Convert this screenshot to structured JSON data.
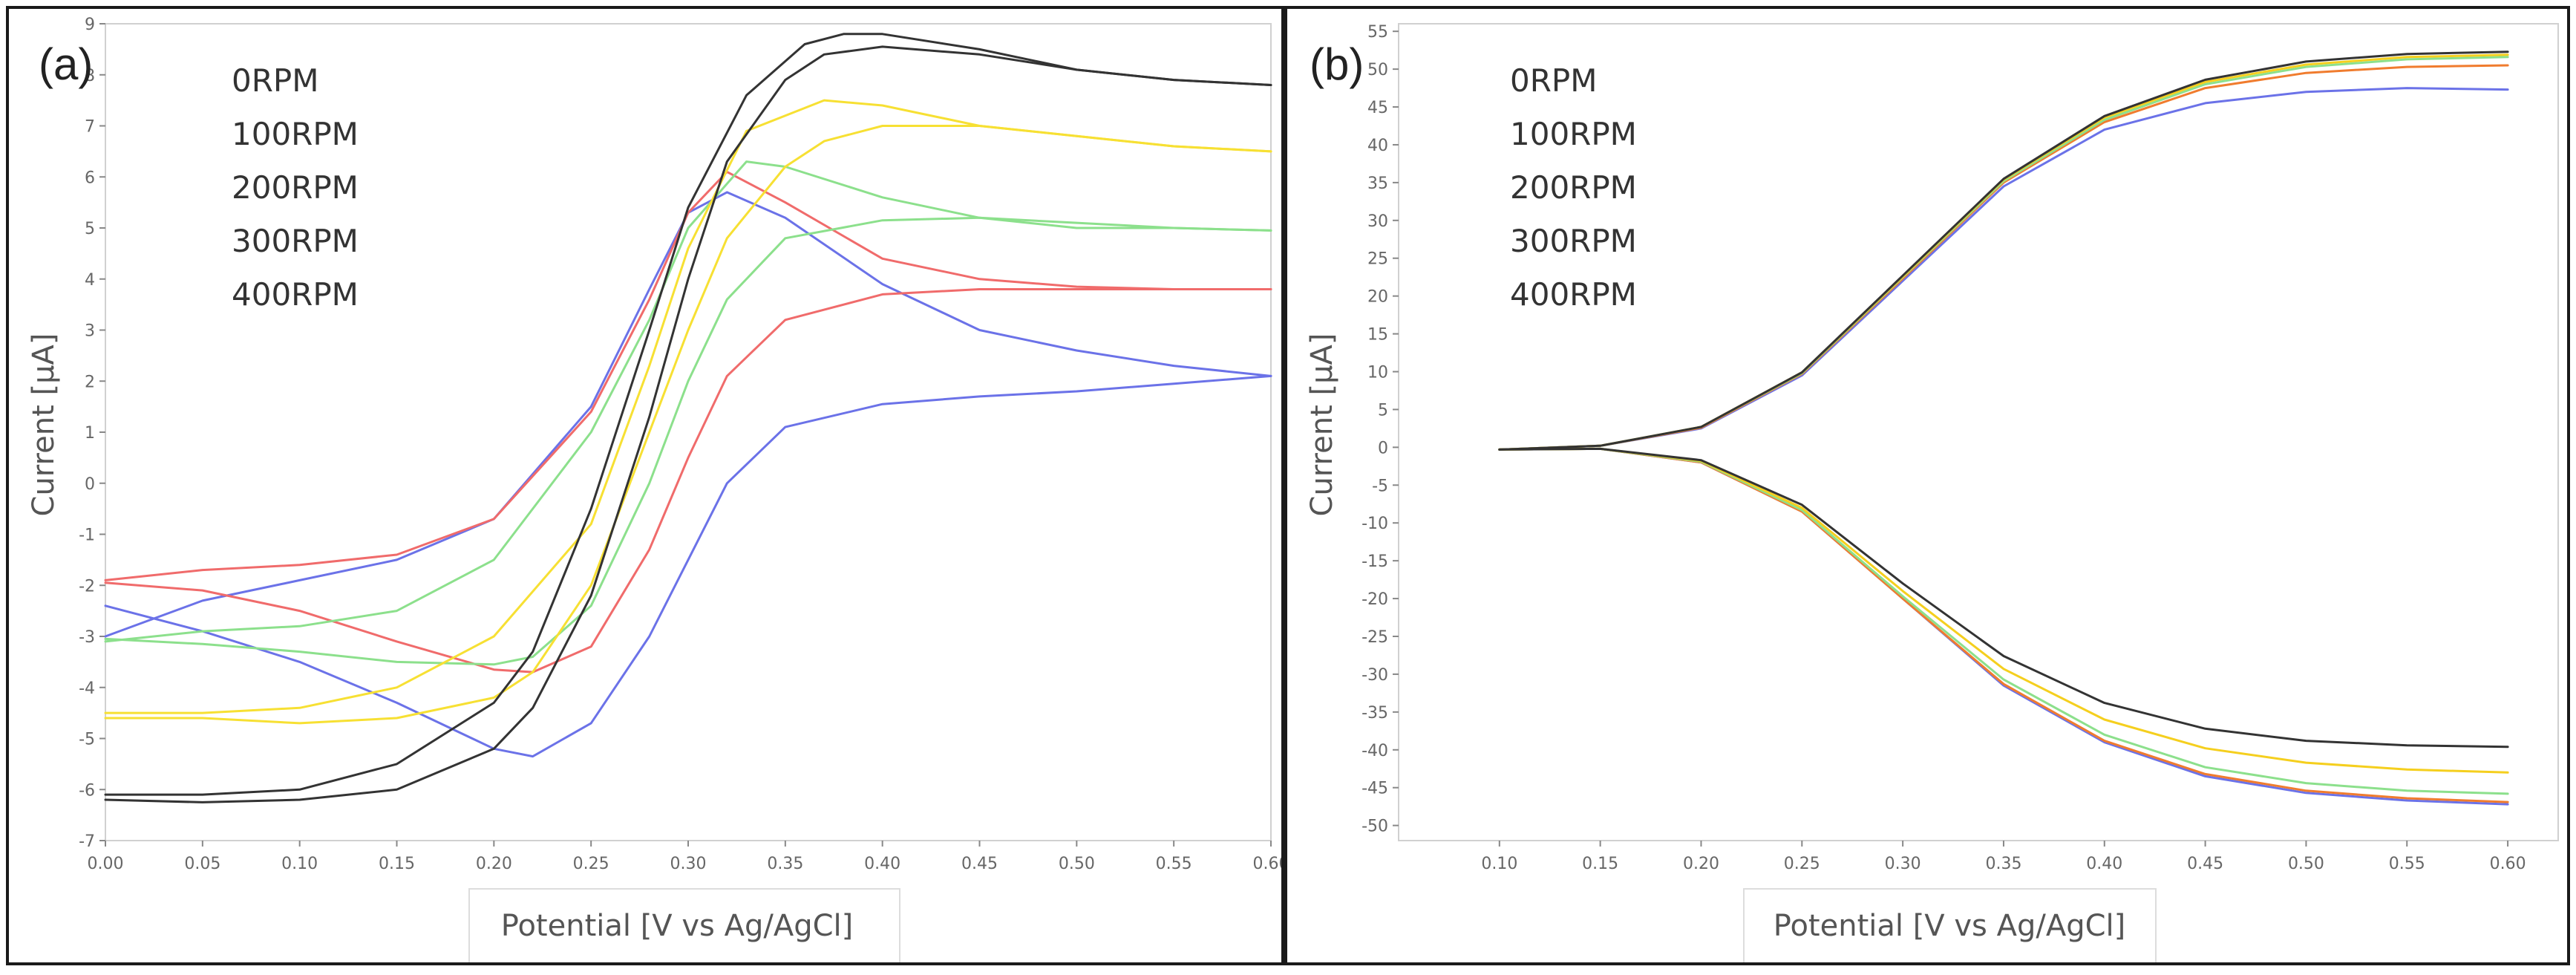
{
  "chart_data": [
    {
      "type": "line",
      "panel_label": "(a)",
      "xlabel": "Potential [V vs Ag/AgCl]",
      "ylabel": "Current [μA]",
      "xlim": [
        0.0,
        0.6
      ],
      "ylim": [
        -7,
        9
      ],
      "xticks": [
        "0.00",
        "0.05",
        "0.10",
        "0.15",
        "0.20",
        "0.25",
        "0.30",
        "0.35",
        "0.40",
        "0.45",
        "0.50",
        "0.55",
        "0.60"
      ],
      "yticks": [
        "-7",
        "-6",
        "-5",
        "-4",
        "-3",
        "-2",
        "-1",
        "0",
        "1",
        "2",
        "3",
        "4",
        "5",
        "6",
        "7",
        "8",
        "9"
      ],
      "grid": false,
      "legend_position": "top-left",
      "series": [
        {
          "name": "0RPM",
          "color": "#4a5fd6",
          "line_color": "#6b72e8",
          "forward": {
            "x": [
              0.0,
              0.05,
              0.1,
              0.15,
              0.2,
              0.25,
              0.28,
              0.3,
              0.32,
              0.35,
              0.4,
              0.45,
              0.5,
              0.55,
              0.6
            ],
            "y": [
              -3.0,
              -2.3,
              -1.9,
              -1.5,
              -0.7,
              1.5,
              3.8,
              5.3,
              5.7,
              5.2,
              3.9,
              3.0,
              2.6,
              2.3,
              2.1
            ]
          },
          "reverse": {
            "x": [
              0.6,
              0.55,
              0.5,
              0.45,
              0.4,
              0.35,
              0.32,
              0.3,
              0.28,
              0.25,
              0.22,
              0.2,
              0.15,
              0.1,
              0.05,
              0.0
            ],
            "y": [
              2.1,
              1.95,
              1.8,
              1.7,
              1.55,
              1.1,
              0.0,
              -1.5,
              -3.0,
              -4.7,
              -5.35,
              -5.2,
              -4.3,
              -3.5,
              -2.9,
              -2.4
            ]
          }
        },
        {
          "name": "100RPM",
          "color": "#f07c2e",
          "line_color": "#f06b6b",
          "forward": {
            "x": [
              0.0,
              0.05,
              0.1,
              0.15,
              0.2,
              0.25,
              0.28,
              0.3,
              0.32,
              0.35,
              0.4,
              0.45,
              0.5,
              0.55,
              0.6
            ],
            "y": [
              -1.9,
              -1.7,
              -1.6,
              -1.4,
              -0.7,
              1.4,
              3.6,
              5.3,
              6.1,
              5.5,
              4.4,
              4.0,
              3.85,
              3.8,
              3.8
            ]
          },
          "reverse": {
            "x": [
              0.6,
              0.55,
              0.5,
              0.45,
              0.4,
              0.35,
              0.32,
              0.3,
              0.28,
              0.25,
              0.22,
              0.2,
              0.15,
              0.1,
              0.05,
              0.0
            ],
            "y": [
              3.8,
              3.8,
              3.8,
              3.8,
              3.7,
              3.2,
              2.1,
              0.5,
              -1.3,
              -3.2,
              -3.7,
              -3.65,
              -3.1,
              -2.5,
              -2.1,
              -1.95
            ]
          }
        },
        {
          "name": "200RPM",
          "color": "#7fd47f",
          "line_color": "#8ce08c",
          "forward": {
            "x": [
              0.0,
              0.05,
              0.1,
              0.15,
              0.2,
              0.25,
              0.28,
              0.3,
              0.33,
              0.35,
              0.4,
              0.45,
              0.5,
              0.55,
              0.6
            ],
            "y": [
              -3.1,
              -2.9,
              -2.8,
              -2.5,
              -1.5,
              1.0,
              3.2,
              5.0,
              6.3,
              6.2,
              5.6,
              5.2,
              5.0,
              5.0,
              4.95
            ]
          },
          "reverse": {
            "x": [
              0.6,
              0.55,
              0.5,
              0.45,
              0.4,
              0.35,
              0.32,
              0.3,
              0.28,
              0.25,
              0.22,
              0.2,
              0.15,
              0.1,
              0.05,
              0.0
            ],
            "y": [
              4.95,
              5.0,
              5.1,
              5.2,
              5.15,
              4.8,
              3.6,
              2.0,
              0.0,
              -2.4,
              -3.4,
              -3.55,
              -3.5,
              -3.3,
              -3.15,
              -3.05
            ]
          }
        },
        {
          "name": "300RPM",
          "color": "#f5cf1e",
          "line_color": "#f7e033",
          "forward": {
            "x": [
              0.0,
              0.05,
              0.1,
              0.15,
              0.2,
              0.25,
              0.28,
              0.3,
              0.33,
              0.37,
              0.4,
              0.45,
              0.5,
              0.55,
              0.6
            ],
            "y": [
              -4.5,
              -4.5,
              -4.4,
              -4.0,
              -3.0,
              -0.8,
              2.3,
              4.6,
              6.9,
              7.5,
              7.4,
              7.0,
              6.8,
              6.6,
              6.5
            ]
          },
          "reverse": {
            "x": [
              0.6,
              0.55,
              0.5,
              0.45,
              0.4,
              0.37,
              0.35,
              0.32,
              0.3,
              0.28,
              0.25,
              0.22,
              0.2,
              0.15,
              0.1,
              0.05,
              0.0
            ],
            "y": [
              6.5,
              6.6,
              6.8,
              7.0,
              7.0,
              6.7,
              6.2,
              4.8,
              3.0,
              1.0,
              -2.0,
              -3.7,
              -4.2,
              -4.6,
              -4.7,
              -4.6,
              -4.6
            ]
          }
        },
        {
          "name": "400RPM",
          "color": "#111111",
          "line_color": "#333333",
          "forward": {
            "x": [
              0.0,
              0.05,
              0.1,
              0.15,
              0.2,
              0.22,
              0.25,
              0.28,
              0.3,
              0.33,
              0.36,
              0.38,
              0.4,
              0.45,
              0.5,
              0.55,
              0.6
            ],
            "y": [
              -6.1,
              -6.1,
              -6.0,
              -5.5,
              -4.3,
              -3.3,
              -0.5,
              3.0,
              5.4,
              7.6,
              8.6,
              8.8,
              8.8,
              8.5,
              8.1,
              7.9,
              7.8
            ]
          },
          "reverse": {
            "x": [
              0.6,
              0.55,
              0.5,
              0.45,
              0.4,
              0.37,
              0.35,
              0.32,
              0.3,
              0.28,
              0.25,
              0.22,
              0.2,
              0.15,
              0.1,
              0.05,
              0.0
            ],
            "y": [
              7.8,
              7.9,
              8.1,
              8.4,
              8.55,
              8.4,
              7.9,
              6.3,
              4.0,
              1.3,
              -2.2,
              -4.4,
              -5.2,
              -6.0,
              -6.2,
              -6.25,
              -6.2
            ]
          }
        }
      ]
    },
    {
      "type": "line",
      "panel_label": "(b)",
      "xlabel": "Potential [V vs Ag/AgCl]",
      "ylabel": "Current [μA]",
      "xlim": [
        0.05,
        0.625
      ],
      "ylim": [
        -52,
        56
      ],
      "xticks": [
        "0.10",
        "0.15",
        "0.20",
        "0.25",
        "0.30",
        "0.35",
        "0.40",
        "0.45",
        "0.50",
        "0.55",
        "0.60"
      ],
      "yticks": [
        "-50",
        "-45",
        "-40",
        "-35",
        "-30",
        "-25",
        "-20",
        "-15",
        "-10",
        "-5",
        "0",
        "5",
        "10",
        "15",
        "20",
        "25",
        "30",
        "35",
        "40",
        "45",
        "50",
        "55"
      ],
      "grid": false,
      "legend_position": "top-left",
      "series": [
        {
          "name": "0RPM",
          "color": "#4a5fd6",
          "line_color": "#6b72e8",
          "upper": {
            "x": [
              0.1,
              0.15,
              0.2,
              0.25,
              0.3,
              0.35,
              0.4,
              0.45,
              0.5,
              0.55,
              0.6
            ],
            "y": [
              -0.3,
              0.2,
              2.5,
              9.5,
              22.0,
              34.5,
              42.0,
              45.5,
              47.0,
              47.5,
              47.3
            ]
          },
          "lower": {
            "x": [
              0.1,
              0.15,
              0.2,
              0.25,
              0.3,
              0.35,
              0.4,
              0.45,
              0.5,
              0.55,
              0.6
            ],
            "y": [
              -0.3,
              -0.2,
              -2.0,
              -8.5,
              -20.0,
              -31.5,
              -39.0,
              -43.5,
              -45.7,
              -46.7,
              -47.2
            ]
          }
        },
        {
          "name": "100RPM",
          "color": "#f07c2e",
          "line_color": "#f07c2e",
          "upper": {
            "x": [
              0.1,
              0.15,
              0.2,
              0.25,
              0.3,
              0.35,
              0.4,
              0.45,
              0.5,
              0.55,
              0.6
            ],
            "y": [
              -0.3,
              0.2,
              2.6,
              9.7,
              22.3,
              35.0,
              43.0,
              47.5,
              49.5,
              50.3,
              50.5
            ]
          },
          "lower": {
            "x": [
              0.1,
              0.15,
              0.2,
              0.25,
              0.3,
              0.35,
              0.4,
              0.45,
              0.5,
              0.55,
              0.6
            ],
            "y": [
              -0.3,
              -0.2,
              -2.0,
              -8.5,
              -20.0,
              -31.3,
              -38.8,
              -43.2,
              -45.4,
              -46.4,
              -46.9
            ]
          }
        },
        {
          "name": "200RPM",
          "color": "#7fd47f",
          "line_color": "#8ce08c",
          "upper": {
            "x": [
              0.1,
              0.15,
              0.2,
              0.25,
              0.3,
              0.35,
              0.4,
              0.45,
              0.5,
              0.55,
              0.6
            ],
            "y": [
              -0.3,
              0.2,
              2.7,
              9.8,
              22.5,
              35.2,
              43.3,
              48.0,
              50.3,
              51.3,
              51.6
            ]
          },
          "lower": {
            "x": [
              0.1,
              0.15,
              0.2,
              0.25,
              0.3,
              0.35,
              0.4,
              0.45,
              0.5,
              0.55,
              0.6
            ],
            "y": [
              -0.3,
              -0.2,
              -1.9,
              -8.3,
              -19.7,
              -30.7,
              -38.0,
              -42.3,
              -44.4,
              -45.4,
              -45.8
            ]
          }
        },
        {
          "name": "300RPM",
          "color": "#f5cf1e",
          "line_color": "#f5cf1e",
          "upper": {
            "x": [
              0.1,
              0.15,
              0.2,
              0.25,
              0.3,
              0.35,
              0.4,
              0.45,
              0.5,
              0.55,
              0.6
            ],
            "y": [
              -0.3,
              0.2,
              2.7,
              9.9,
              22.6,
              35.4,
              43.6,
              48.3,
              50.6,
              51.6,
              51.9
            ]
          },
          "lower": {
            "x": [
              0.1,
              0.15,
              0.2,
              0.25,
              0.3,
              0.35,
              0.4,
              0.45,
              0.5,
              0.55,
              0.6
            ],
            "y": [
              -0.3,
              -0.2,
              -1.8,
              -8.0,
              -19.0,
              -29.3,
              -36.0,
              -39.8,
              -41.7,
              -42.6,
              -43.0
            ]
          }
        },
        {
          "name": "400RPM",
          "color": "#111111",
          "line_color": "#333333",
          "upper": {
            "x": [
              0.1,
              0.15,
              0.2,
              0.25,
              0.3,
              0.35,
              0.4,
              0.45,
              0.5,
              0.55,
              0.6
            ],
            "y": [
              -0.3,
              0.2,
              2.7,
              9.9,
              22.7,
              35.5,
              43.8,
              48.6,
              51.0,
              52.0,
              52.3
            ]
          },
          "lower": {
            "x": [
              0.1,
              0.15,
              0.2,
              0.25,
              0.3,
              0.35,
              0.4,
              0.45,
              0.5,
              0.55,
              0.6
            ],
            "y": [
              -0.3,
              -0.2,
              -1.7,
              -7.6,
              -18.0,
              -27.6,
              -33.8,
              -37.2,
              -38.8,
              -39.4,
              -39.6
            ]
          }
        }
      ]
    }
  ]
}
